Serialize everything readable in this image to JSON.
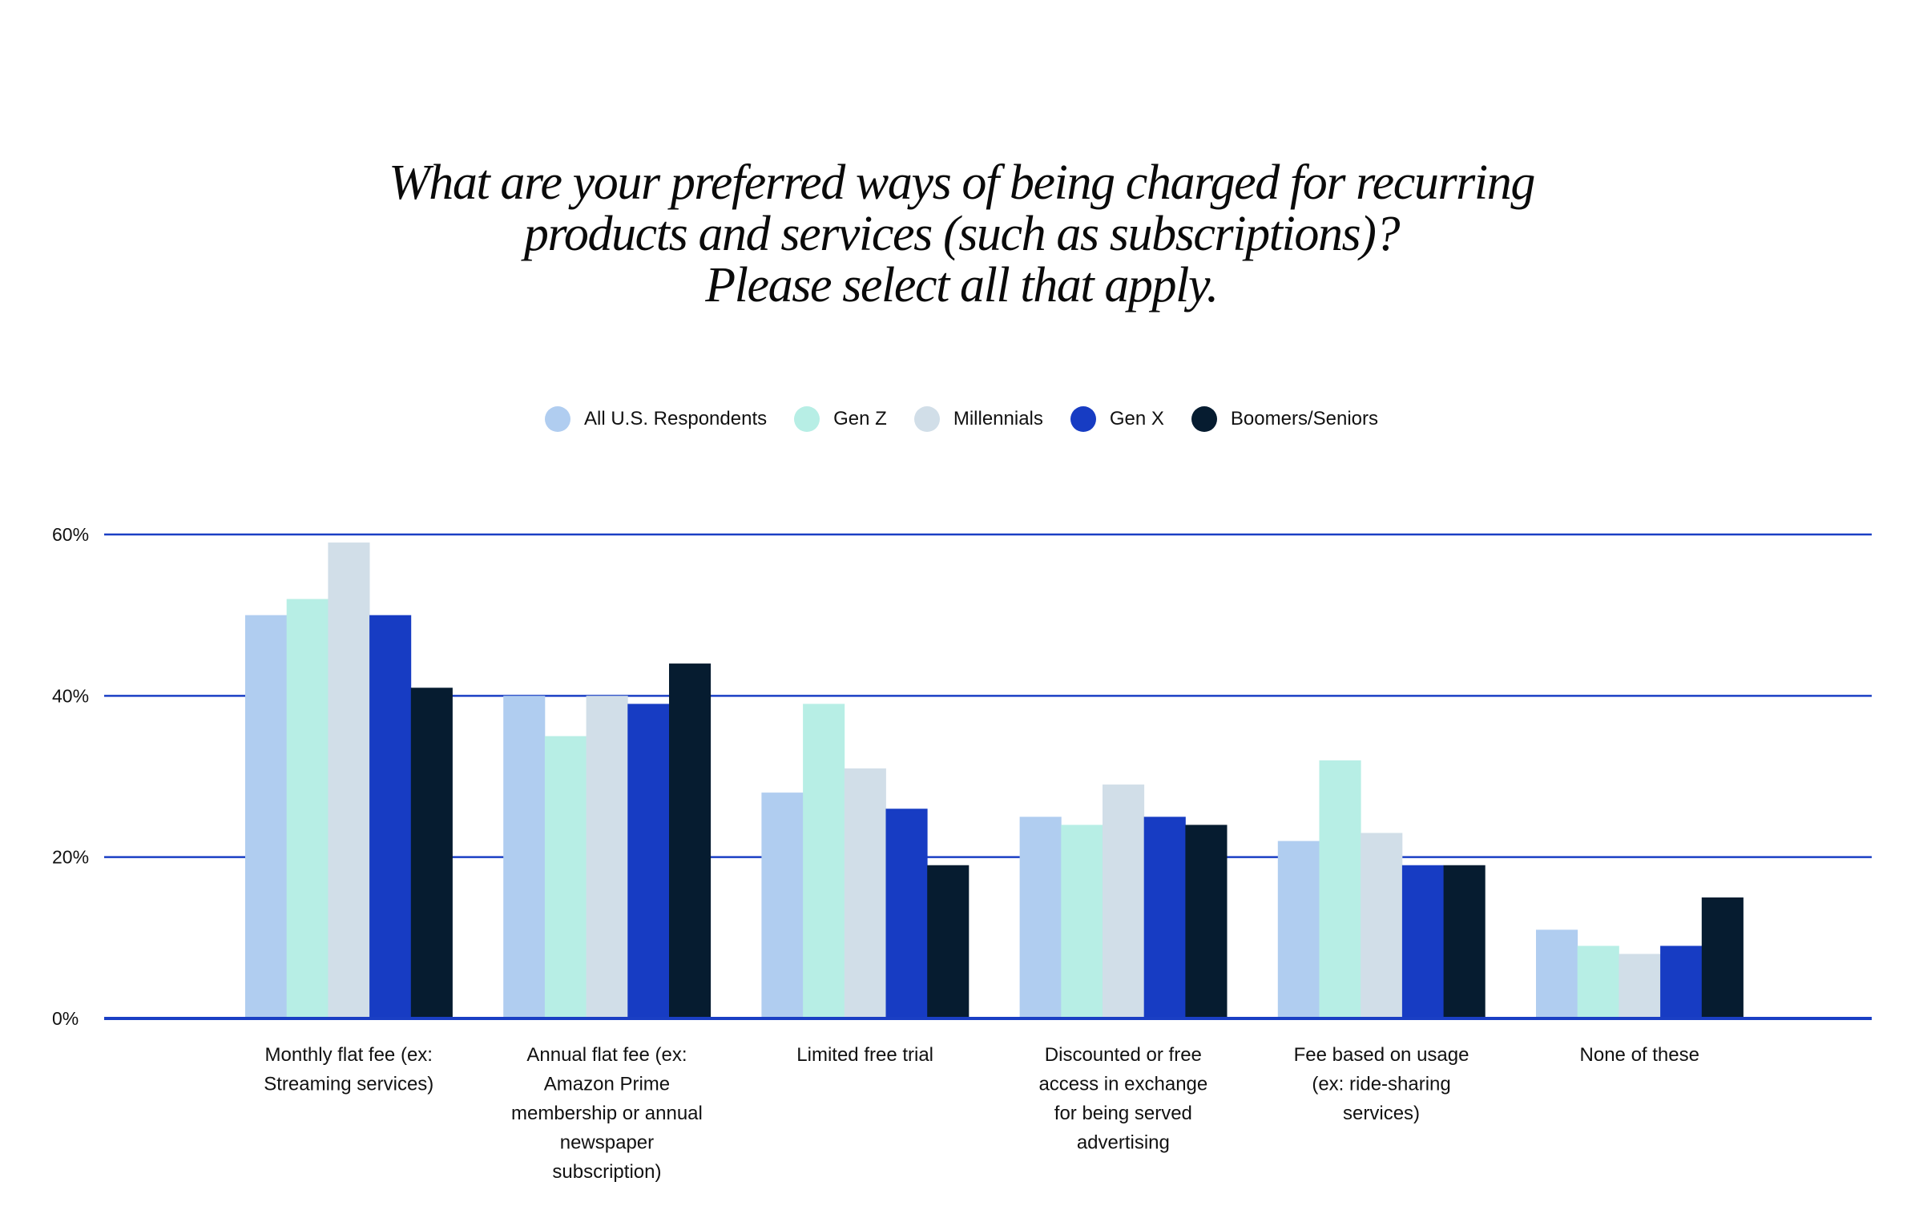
{
  "chart_data": {
    "type": "bar",
    "title": [
      "What are your preferred ways of being charged for recurring",
      "products and services (such as subscriptions)?",
      "Please select all that apply."
    ],
    "xlabel": "",
    "ylabel": "",
    "ylim": [
      0,
      60
    ],
    "yticks": [
      0,
      20,
      40,
      60
    ],
    "ytick_labels": [
      "0%",
      "20%",
      "40%",
      "60%"
    ],
    "grid": true,
    "legend_position": "top-center",
    "categories": [
      [
        "Monthly flat fee (ex:",
        "Streaming services)"
      ],
      [
        "Annual flat fee (ex:",
        "Amazon Prime",
        "membership or annual",
        "newspaper",
        "subscription)"
      ],
      [
        "Limited free trial"
      ],
      [
        "Discounted or free",
        "access in exchange",
        "for being served",
        "advertising"
      ],
      [
        "Fee based on usage",
        "(ex: ride-sharing",
        "services)"
      ],
      [
        "None of these"
      ]
    ],
    "series": [
      {
        "name": "All U.S. Respondents",
        "color": "#B0CDF0",
        "values": [
          50,
          40,
          28,
          25,
          22,
          11
        ]
      },
      {
        "name": "Gen Z",
        "color": "#B7EEE5",
        "values": [
          52,
          35,
          39,
          24,
          32,
          9
        ]
      },
      {
        "name": "Millennials",
        "color": "#D1DEE8",
        "values": [
          59,
          40,
          31,
          29,
          23,
          8
        ]
      },
      {
        "name": "Gen X",
        "color": "#173CC3",
        "values": [
          50,
          39,
          26,
          25,
          19,
          9
        ]
      },
      {
        "name": "Boomers/Seniors",
        "color": "#061C30",
        "values": [
          41,
          44,
          19,
          24,
          19,
          15
        ]
      }
    ],
    "gridline_color": "#1A3FC4",
    "unit": "%"
  }
}
